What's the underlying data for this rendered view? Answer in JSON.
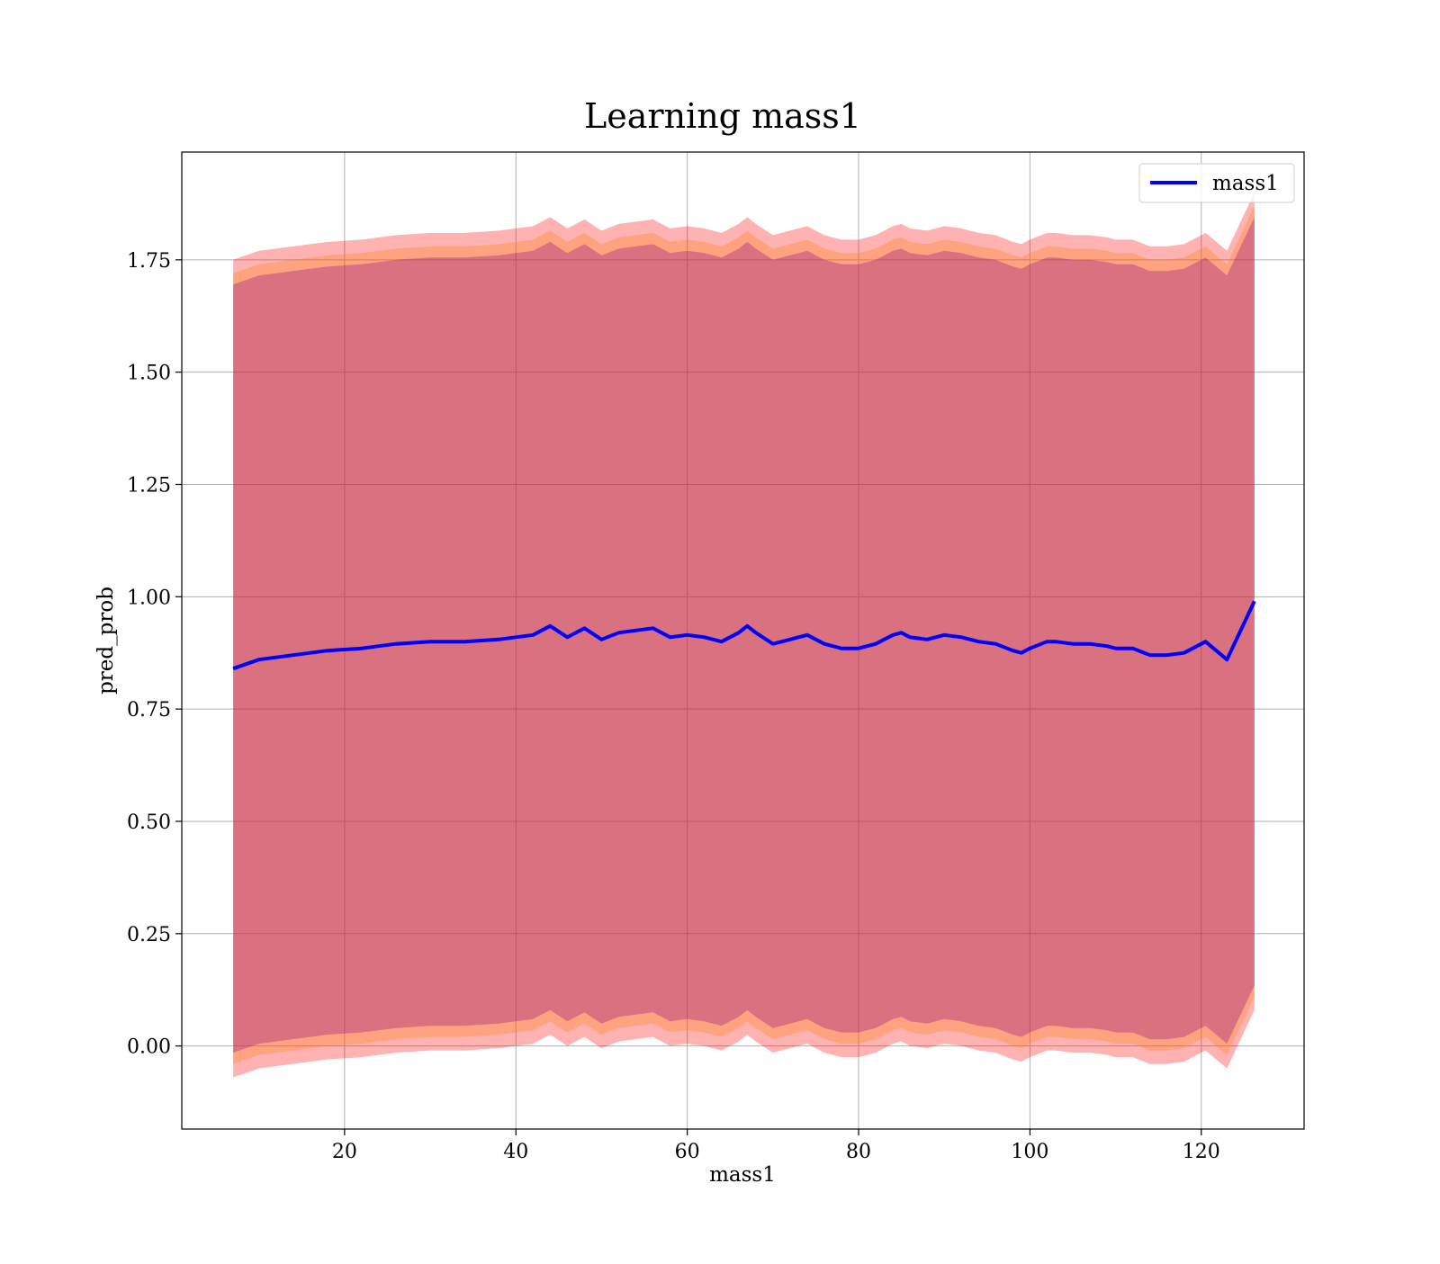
{
  "chart_data": {
    "type": "line",
    "title": "Learning mass1",
    "xlabel": "mass1",
    "ylabel": "pred_prob",
    "xlim": [
      1.0,
      132.0
    ],
    "ylim": [
      -0.185,
      1.99
    ],
    "x_ticks": [
      20,
      40,
      60,
      80,
      100,
      120
    ],
    "x_tick_labels": [
      "20",
      "40",
      "60",
      "80",
      "100",
      "120"
    ],
    "y_ticks": [
      0.0,
      0.25,
      0.5,
      0.75,
      1.0,
      1.25,
      1.5,
      1.75
    ],
    "y_tick_labels": [
      "0.00",
      "0.25",
      "0.50",
      "0.75",
      "1.00",
      "1.25",
      "1.50",
      "1.75"
    ],
    "grid": true,
    "legend": {
      "placement": "top-right",
      "entries": [
        "mass1"
      ]
    },
    "colors": {
      "line": "#0000ff",
      "outer_band": "#ff0000",
      "middle_band": "#ff7f0e",
      "inner_band": "#800080"
    },
    "series": [
      {
        "name": "mass1",
        "x": [
          7,
          10,
          14,
          18,
          22,
          26,
          30,
          34,
          38,
          42,
          44,
          46,
          48,
          50,
          52,
          54,
          56,
          58,
          60,
          62,
          64,
          66,
          67,
          68,
          70,
          72,
          74,
          76,
          78,
          80,
          82,
          84,
          85,
          86,
          88,
          90,
          92,
          94,
          96,
          98,
          99,
          100,
          102,
          103,
          105,
          107,
          109,
          110,
          112,
          114,
          116,
          118,
          120.5,
          123,
          126.2
        ],
        "y": [
          0.84,
          0.86,
          0.87,
          0.88,
          0.885,
          0.895,
          0.9,
          0.9,
          0.905,
          0.915,
          0.935,
          0.91,
          0.93,
          0.905,
          0.92,
          0.925,
          0.93,
          0.91,
          0.915,
          0.91,
          0.9,
          0.92,
          0.935,
          0.92,
          0.895,
          0.905,
          0.915,
          0.895,
          0.885,
          0.885,
          0.895,
          0.915,
          0.92,
          0.91,
          0.905,
          0.915,
          0.91,
          0.9,
          0.895,
          0.88,
          0.875,
          0.885,
          0.9,
          0.9,
          0.895,
          0.895,
          0.89,
          0.885,
          0.885,
          0.87,
          0.87,
          0.875,
          0.9,
          0.86,
          0.99
        ]
      }
    ],
    "bands": [
      {
        "name": "outer",
        "color": "#ff0000",
        "offset": 0.91
      },
      {
        "name": "middle",
        "color": "#ff7f0e",
        "offset": 0.88
      },
      {
        "name": "inner",
        "color": "#800080",
        "offset": 0.855
      }
    ]
  }
}
